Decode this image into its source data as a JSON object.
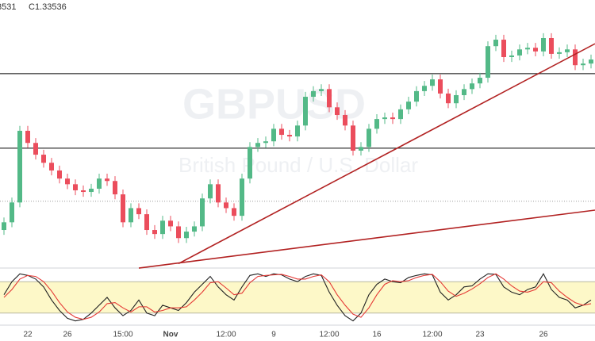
{
  "chart_data": {
    "type": "candlestick",
    "header": [
      "3531",
      "C1.33536"
    ],
    "watermark": {
      "symbol": "GBPUSD",
      "description": "British Pound / U.S. Dollar"
    },
    "categories": [
      null,
      null,
      null,
      "22",
      null,
      null,
      null,
      null,
      "26",
      null,
      null,
      null,
      null,
      null,
      null,
      "15:00",
      null,
      null,
      null,
      null,
      null,
      "Nov",
      null,
      null,
      null,
      null,
      null,
      null,
      "12:00",
      null,
      null,
      null,
      null,
      null,
      "9",
      null,
      null,
      null,
      null,
      null,
      null,
      "12:00",
      null,
      null,
      null,
      null,
      null,
      "16",
      null,
      null,
      null,
      null,
      null,
      null,
      "12:00",
      null,
      null,
      null,
      null,
      null,
      "23",
      null,
      null,
      null,
      null,
      null,
      null,
      null,
      "26",
      null,
      null,
      null,
      null,
      null,
      null
    ],
    "candles": {
      "open": [
        1.2932,
        1.2951,
        1.3,
        1.3177,
        1.3147,
        1.3118,
        1.3098,
        1.3079,
        1.3059,
        1.3045,
        1.303,
        1.3026,
        1.3034,
        1.3059,
        1.3053,
        1.302,
        1.2951,
        1.2986,
        1.2971,
        1.2932,
        1.2922,
        1.2955,
        1.2941,
        1.2912,
        1.2928,
        1.2941,
        1.301,
        1.3045,
        1.3,
        1.2986,
        1.2967,
        1.3059,
        1.3137,
        1.3147,
        1.3151,
        1.3182,
        1.3167,
        1.3163,
        1.319,
        1.3261,
        1.3275,
        1.328,
        1.3235,
        1.3216,
        1.319,
        1.3128,
        1.3137,
        1.3182,
        1.3206,
        1.321,
        1.3206,
        1.323,
        1.3249,
        1.3275,
        1.3288,
        1.3304,
        1.3269,
        1.3245,
        1.3265,
        1.328,
        1.3294,
        1.3308,
        1.3386,
        1.3402,
        1.3359,
        1.3363,
        1.3378,
        1.3382,
        1.3373,
        1.3406,
        1.3367,
        1.3371,
        1.3378,
        1.3339,
        1.3343
      ],
      "high": [
        1.2963,
        1.3012,
        1.3189,
        1.3189,
        1.3159,
        1.313,
        1.311,
        1.3091,
        1.3071,
        1.3057,
        1.3042,
        1.3046,
        1.3071,
        1.3071,
        1.3065,
        1.3032,
        1.2998,
        1.2998,
        1.2983,
        1.2944,
        1.2967,
        1.2967,
        1.2953,
        1.294,
        1.2953,
        1.3022,
        1.3057,
        1.3057,
        1.3012,
        1.2998,
        1.3071,
        1.3149,
        1.3159,
        1.3163,
        1.3194,
        1.3194,
        1.3179,
        1.3202,
        1.3273,
        1.3287,
        1.3292,
        1.3292,
        1.3247,
        1.3228,
        1.3202,
        1.3149,
        1.3194,
        1.3218,
        1.3222,
        1.3222,
        1.3242,
        1.3261,
        1.3287,
        1.33,
        1.3316,
        1.3316,
        1.3281,
        1.3277,
        1.3292,
        1.3306,
        1.332,
        1.3398,
        1.3414,
        1.3414,
        1.3375,
        1.339,
        1.3394,
        1.3394,
        1.3418,
        1.3418,
        1.3383,
        1.339,
        1.339,
        1.3355,
        1.3365
      ],
      "low": [
        1.292,
        1.2939,
        1.2988,
        1.3135,
        1.3106,
        1.3086,
        1.3067,
        1.3047,
        1.3033,
        1.3018,
        1.3014,
        1.3014,
        1.3022,
        1.3041,
        1.3008,
        1.2939,
        1.2939,
        1.2959,
        1.292,
        1.291,
        1.291,
        1.2929,
        1.29,
        1.29,
        1.2916,
        1.2929,
        1.2998,
        1.2988,
        1.2974,
        1.2955,
        1.2955,
        1.3047,
        1.3125,
        1.3135,
        1.3139,
        1.3155,
        1.3151,
        1.3151,
        1.3178,
        1.3249,
        1.3263,
        1.3223,
        1.3204,
        1.3178,
        1.3116,
        1.3116,
        1.3125,
        1.317,
        1.3194,
        1.3194,
        1.3194,
        1.3218,
        1.3237,
        1.3263,
        1.3276,
        1.3257,
        1.3233,
        1.3233,
        1.3253,
        1.3268,
        1.3282,
        1.3296,
        1.3374,
        1.3347,
        1.3347,
        1.3351,
        1.3366,
        1.3361,
        1.3361,
        1.3355,
        1.3355,
        1.3359,
        1.3327,
        1.3327,
        1.3331
      ],
      "close": [
        1.2951,
        1.3,
        1.3177,
        1.3147,
        1.3118,
        1.3098,
        1.3079,
        1.3059,
        1.3045,
        1.303,
        1.3026,
        1.3034,
        1.3059,
        1.3053,
        1.302,
        1.2951,
        1.2986,
        1.2971,
        1.2932,
        1.2922,
        1.2955,
        1.2941,
        1.2912,
        1.2928,
        1.2941,
        1.301,
        1.3045,
        1.3,
        1.2986,
        1.2967,
        1.3059,
        1.3137,
        1.3147,
        1.3151,
        1.3182,
        1.3167,
        1.3163,
        1.319,
        1.3261,
        1.3275,
        1.328,
        1.3235,
        1.3216,
        1.319,
        1.3128,
        1.3137,
        1.3182,
        1.3206,
        1.321,
        1.3206,
        1.323,
        1.3249,
        1.3275,
        1.3288,
        1.3304,
        1.3269,
        1.3245,
        1.3265,
        1.328,
        1.3294,
        1.3308,
        1.3386,
        1.3402,
        1.3359,
        1.3363,
        1.3378,
        1.3382,
        1.3373,
        1.3406,
        1.3367,
        1.3371,
        1.3378,
        1.3339,
        1.3343,
        1.3353
      ]
    },
    "up_color": "#53b987",
    "down_color": "#eb4d5c",
    "ylim": [
      1.284,
      1.35
    ],
    "horizontal_lines": [
      1.3318,
      1.3134
    ],
    "dotted_line": 1.3003,
    "trend_color": "#b22222",
    "trend_lines": [
      {
        "x": [
          17,
          74.5
        ],
        "y": [
          1.2838,
          1.2981
        ]
      },
      {
        "x": [
          22,
          74.5
        ],
        "y": [
          1.2849,
          1.3392
        ]
      }
    ],
    "oscillator": {
      "ylim": [
        0,
        100
      ],
      "levels": [
        80,
        20
      ],
      "band_color": "#fdf8c8",
      "series": [
        {
          "color": "#222222",
          "values": [
            55,
            80,
            95,
            92,
            85,
            70,
            45,
            25,
            10,
            5,
            8,
            20,
            35,
            50,
            30,
            15,
            25,
            45,
            20,
            15,
            35,
            30,
            25,
            40,
            60,
            75,
            90,
            70,
            55,
            45,
            70,
            92,
            95,
            90,
            95,
            93,
            85,
            80,
            90,
            95,
            92,
            60,
            35,
            15,
            5,
            20,
            55,
            75,
            85,
            80,
            78,
            88,
            92,
            95,
            93,
            60,
            45,
            55,
            70,
            72,
            85,
            95,
            94,
            70,
            60,
            55,
            65,
            70,
            95,
            65,
            50,
            45,
            30,
            35,
            45
          ]
        },
        {
          "color": "#e53935",
          "values": [
            50,
            65,
            85,
            92,
            90,
            80,
            62,
            40,
            22,
            12,
            8,
            12,
            22,
            38,
            40,
            30,
            22,
            32,
            32,
            22,
            25,
            30,
            30,
            32,
            45,
            60,
            78,
            80,
            68,
            55,
            58,
            78,
            90,
            92,
            93,
            94,
            90,
            85,
            85,
            90,
            93,
            80,
            55,
            35,
            18,
            12,
            30,
            55,
            75,
            82,
            80,
            82,
            88,
            92,
            94,
            80,
            62,
            52,
            58,
            66,
            76,
            88,
            95,
            85,
            72,
            62,
            60,
            65,
            80,
            78,
            62,
            50,
            40,
            35,
            38
          ]
        }
      ]
    }
  }
}
